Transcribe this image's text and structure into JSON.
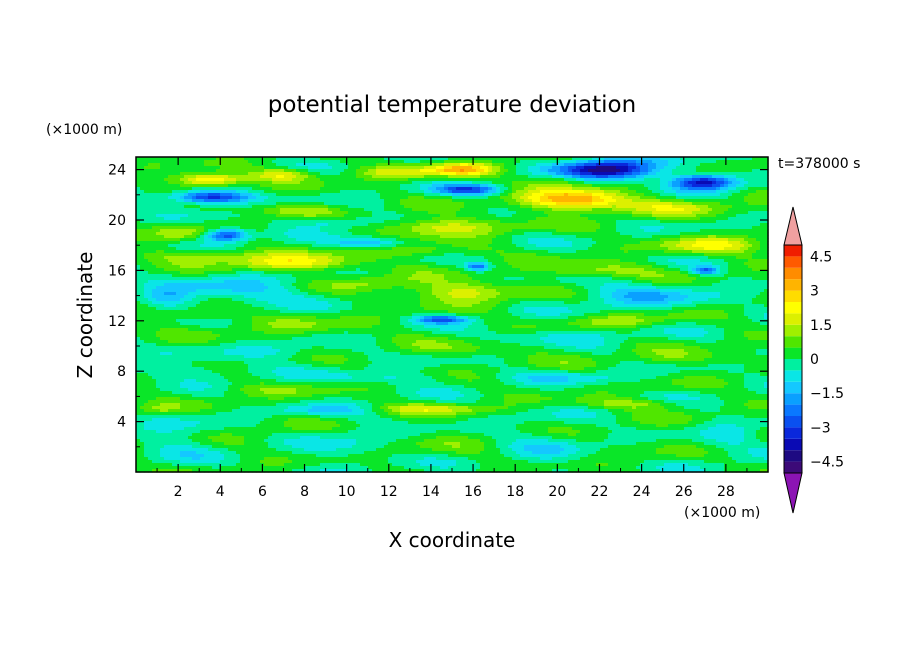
{
  "chart_data": {
    "type": "heatmap",
    "title": "potential temperature deviation",
    "xlabel": "X coordinate",
    "ylabel": "Z coordinate",
    "x_unit_label": "(×1000 m)",
    "y_unit_label": "(×1000 m)",
    "time_label": "t=378000 s",
    "xlim": [
      0,
      30
    ],
    "ylim": [
      0,
      25
    ],
    "x_ticks": [
      2,
      4,
      6,
      8,
      10,
      12,
      14,
      16,
      18,
      20,
      22,
      24,
      26,
      28
    ],
    "x_tick_labels": [
      "2",
      "4",
      "6",
      "8",
      "10",
      "12",
      "14",
      "16",
      "18",
      "20",
      "22",
      "24",
      "26",
      "28"
    ],
    "y_ticks": [
      4,
      8,
      12,
      16,
      20,
      24
    ],
    "y_tick_labels": [
      "4",
      "8",
      "12",
      "16",
      "20",
      "24"
    ],
    "colorbar": {
      "levels": [
        -5,
        -4.5,
        -4,
        -3.5,
        -3,
        -2.5,
        -2,
        -1.5,
        -1,
        -0.5,
        0,
        0.5,
        1,
        1.5,
        2,
        2.5,
        3,
        3.5,
        4,
        4.5,
        5
      ],
      "colors": [
        "#3c0a78",
        "#1e0a82",
        "#0a0ab4",
        "#0a28dc",
        "#0a50f0",
        "#0a78ff",
        "#0aa0ff",
        "#14c8ff",
        "#0ae6e6",
        "#00f0a0",
        "#0ae628",
        "#50e600",
        "#a0f000",
        "#dcf000",
        "#ffff00",
        "#ffdc00",
        "#ffb400",
        "#ff8c00",
        "#ff5a00",
        "#f01e00"
      ],
      "tick_values": [
        4.5,
        3,
        1.5,
        0,
        -1.5,
        -3,
        -4.5
      ],
      "tick_labels": [
        "4.5",
        "3",
        "1.5",
        "0",
        "−1.5",
        "−3",
        "−4.5"
      ],
      "over_color": "#f0a0a0",
      "under_color": "#8c14b4"
    },
    "background_value": 0.1,
    "features": [
      {
        "x": 3.5,
        "z": 23.2,
        "sx": 1.6,
        "sz": 0.5,
        "value": 3.2
      },
      {
        "x": 7.0,
        "z": 23.6,
        "sx": 1.4,
        "sz": 0.5,
        "value": 1.8
      },
      {
        "x": 12.5,
        "z": 23.8,
        "sx": 2.0,
        "sz": 0.5,
        "value": 1.5
      },
      {
        "x": 15.5,
        "z": 24.0,
        "sx": 1.5,
        "sz": 0.5,
        "value": 2.8
      },
      {
        "x": 20.0,
        "z": 23.2,
        "sx": 1.5,
        "sz": 0.6,
        "value": 1.2
      },
      {
        "x": 22.3,
        "z": 24.0,
        "sx": 2.2,
        "sz": 0.8,
        "value": -4.6
      },
      {
        "x": 27.0,
        "z": 23.0,
        "sx": 1.5,
        "sz": 0.6,
        "value": -4.0
      },
      {
        "x": 3.5,
        "z": 21.8,
        "sx": 1.8,
        "sz": 0.5,
        "value": -3.8
      },
      {
        "x": 15.8,
        "z": 22.4,
        "sx": 1.5,
        "sz": 0.4,
        "value": -2.8
      },
      {
        "x": 20.8,
        "z": 21.6,
        "sx": 2.4,
        "sz": 0.8,
        "value": 3.5
      },
      {
        "x": 25.5,
        "z": 21.0,
        "sx": 3.0,
        "sz": 0.7,
        "value": 1.2
      },
      {
        "x": 7.5,
        "z": 20.8,
        "sx": 2.0,
        "sz": 0.5,
        "value": 1.3
      },
      {
        "x": 9.5,
        "z": 19.8,
        "sx": 2.0,
        "sz": 0.5,
        "value": -1.3
      },
      {
        "x": 4.3,
        "z": 18.8,
        "sx": 1.0,
        "sz": 0.5,
        "value": -3.4
      },
      {
        "x": 2.0,
        "z": 19.0,
        "sx": 1.5,
        "sz": 0.6,
        "value": 1.0
      },
      {
        "x": 14.5,
        "z": 19.5,
        "sx": 3.0,
        "sz": 0.7,
        "value": 1.8
      },
      {
        "x": 27.5,
        "z": 18.0,
        "sx": 2.5,
        "sz": 0.7,
        "value": 1.7
      },
      {
        "x": 11.0,
        "z": 18.2,
        "sx": 1.5,
        "sz": 0.4,
        "value": -1.8
      },
      {
        "x": 3.0,
        "z": 17.2,
        "sx": 2.5,
        "sz": 0.5,
        "value": 1.2
      },
      {
        "x": 7.5,
        "z": 16.6,
        "sx": 3.0,
        "sz": 0.7,
        "value": 2.2
      },
      {
        "x": 14.0,
        "z": 17.5,
        "sx": 2.5,
        "sz": 0.5,
        "value": 1.0
      },
      {
        "x": 16.2,
        "z": 16.3,
        "sx": 0.5,
        "sz": 0.3,
        "value": -2.5
      },
      {
        "x": 22.0,
        "z": 16.0,
        "sx": 3.0,
        "sz": 0.6,
        "value": 1.3
      },
      {
        "x": 27.0,
        "z": 16.0,
        "sx": 0.6,
        "sz": 0.3,
        "value": -2.5
      },
      {
        "x": 5.0,
        "z": 14.5,
        "sx": 3.0,
        "sz": 1.2,
        "value": -1.2
      },
      {
        "x": 11.5,
        "z": 15.0,
        "sx": 2.0,
        "sz": 0.6,
        "value": 1.0
      },
      {
        "x": 15.5,
        "z": 14.3,
        "sx": 2.5,
        "sz": 0.8,
        "value": 1.8
      },
      {
        "x": 24.0,
        "z": 14.0,
        "sx": 3.0,
        "sz": 1.0,
        "value": -1.3
      },
      {
        "x": 1.5,
        "z": 13.8,
        "sx": 1.2,
        "sz": 0.8,
        "value": -1.4
      },
      {
        "x": 14.5,
        "z": 12.1,
        "sx": 1.2,
        "sz": 0.3,
        "value": -2.5
      },
      {
        "x": 3.0,
        "z": 12.5,
        "sx": 2.0,
        "sz": 0.5,
        "value": 1.0
      },
      {
        "x": 23.0,
        "z": 12.0,
        "sx": 2.5,
        "sz": 0.5,
        "value": 1.0
      },
      {
        "x": 8.0,
        "z": 11.5,
        "sx": 3.5,
        "sz": 0.8,
        "value": 0.6
      },
      {
        "x": 20.0,
        "z": 10.8,
        "sx": 3.0,
        "sz": 0.6,
        "value": -0.8
      },
      {
        "x": 7.0,
        "z": 9.5,
        "sx": 3.0,
        "sz": 0.6,
        "value": -0.7
      },
      {
        "x": 16.0,
        "z": 9.7,
        "sx": 3.5,
        "sz": 0.6,
        "value": 0.6
      },
      {
        "x": 26.0,
        "z": 9.0,
        "sx": 3.0,
        "sz": 0.6,
        "value": 0.7
      },
      {
        "x": 3.0,
        "z": 8.0,
        "sx": 3.0,
        "sz": 0.6,
        "value": -0.8
      },
      {
        "x": 12.0,
        "z": 7.5,
        "sx": 3.0,
        "sz": 0.5,
        "value": -0.8
      },
      {
        "x": 21.0,
        "z": 7.5,
        "sx": 3.0,
        "sz": 0.5,
        "value": -0.7
      },
      {
        "x": 6.0,
        "z": 6.5,
        "sx": 3.0,
        "sz": 0.5,
        "value": 0.6
      },
      {
        "x": 14.0,
        "z": 5.0,
        "sx": 3.0,
        "sz": 0.4,
        "value": 1.2
      },
      {
        "x": 23.5,
        "z": 5.4,
        "sx": 2.5,
        "sz": 0.4,
        "value": 1.1
      },
      {
        "x": 9.0,
        "z": 4.9,
        "sx": 2.5,
        "sz": 0.4,
        "value": -0.9
      },
      {
        "x": 1.0,
        "z": 5.0,
        "sx": 1.0,
        "sz": 0.4,
        "value": 0.8
      },
      {
        "x": 10.0,
        "z": 2.0,
        "sx": 2.0,
        "sz": 2.0,
        "value": -0.6
      },
      {
        "x": 19.5,
        "z": 2.0,
        "sx": 2.0,
        "sz": 2.2,
        "value": -0.6
      },
      {
        "x": 2.0,
        "z": 2.5,
        "sx": 2.0,
        "sz": 1.8,
        "value": -0.6
      },
      {
        "x": 28.0,
        "z": 2.5,
        "sx": 1.5,
        "sz": 1.8,
        "value": -0.6
      },
      {
        "x": 6.5,
        "z": 3.0,
        "sx": 1.5,
        "sz": 1.5,
        "value": 0.2
      },
      {
        "x": 14.5,
        "z": 2.5,
        "sx": 2.5,
        "sz": 2.0,
        "value": 0.2
      },
      {
        "x": 24.5,
        "z": 2.5,
        "sx": 2.0,
        "sz": 2.0,
        "value": 0.2
      }
    ]
  }
}
